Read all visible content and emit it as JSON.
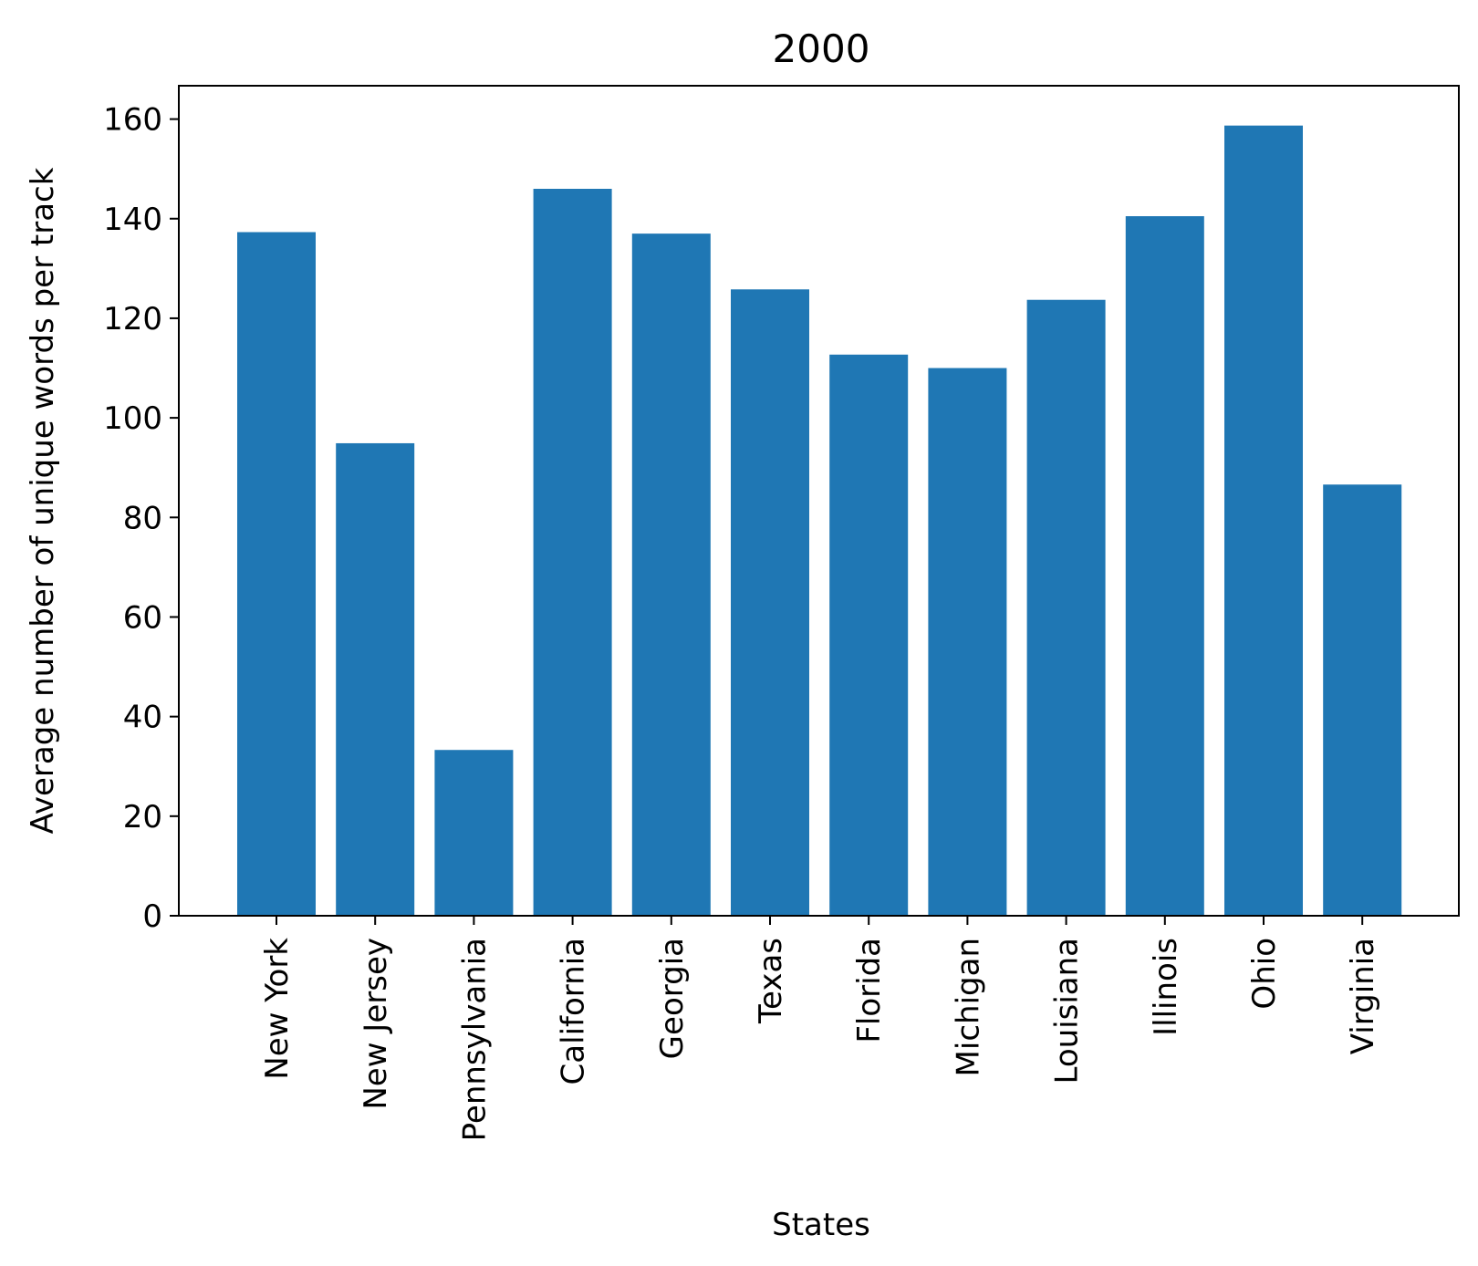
{
  "chart_data": {
    "type": "bar",
    "title": "2000",
    "xlabel": "States",
    "ylabel": "Average number of unique words per track",
    "categories": [
      "New York",
      "New Jersey",
      "Pennsylvania",
      "California",
      "Georgia",
      "Texas",
      "Florida",
      "Michigan",
      "Louisiana",
      "Illinois",
      "Ohio",
      "Virginia"
    ],
    "values": [
      137.3,
      94.9,
      33.3,
      146.0,
      137.0,
      125.8,
      112.7,
      110.0,
      123.7,
      140.5,
      158.7,
      86.6
    ],
    "ylim": [
      0,
      166.7
    ],
    "yticks": [
      0,
      20,
      40,
      60,
      80,
      100,
      120,
      140,
      160
    ],
    "bar_color": "#1f77b4",
    "grid": false,
    "legend": "none"
  }
}
